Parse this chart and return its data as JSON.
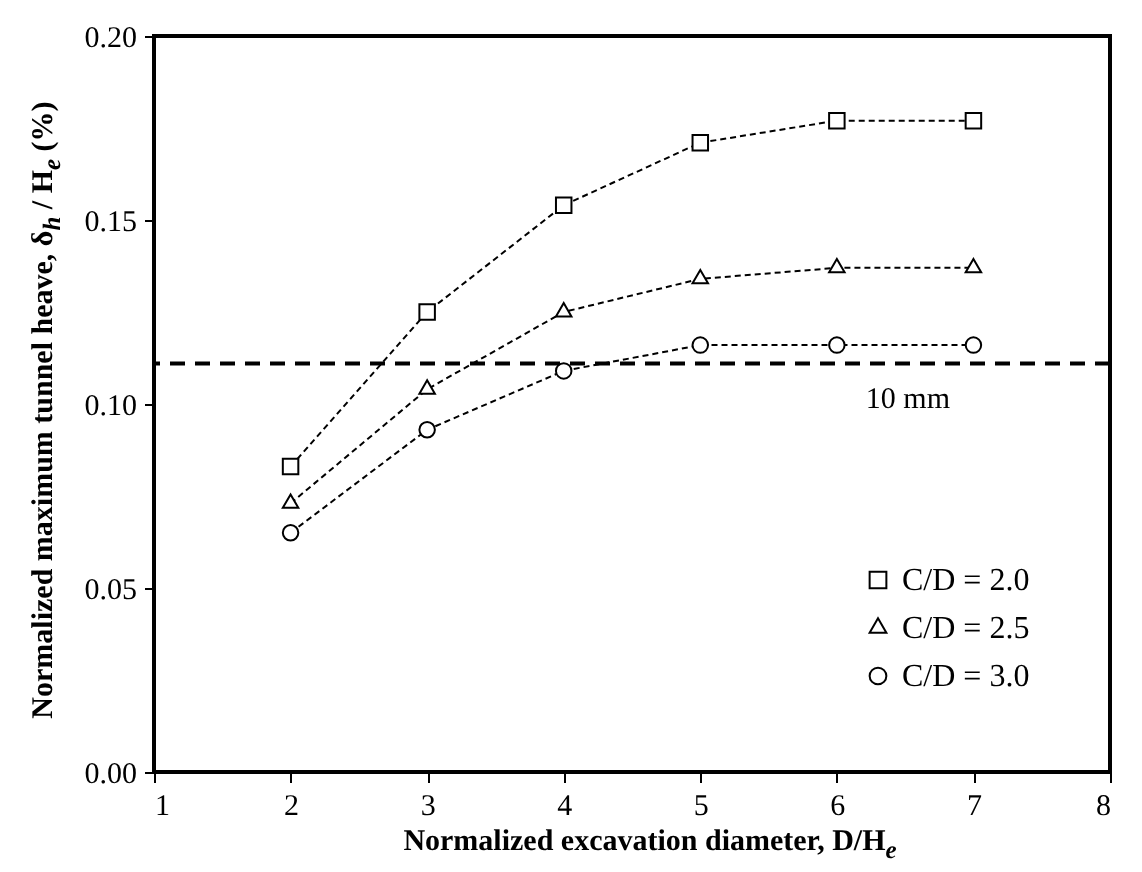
{
  "chart_data": {
    "type": "line",
    "xlabel": "Normalized excavation diameter, $_{}$D/H$_{e}$",
    "ylabel": "Normalized maximum tunnel heave,  δ$_{h}$ / H$_{e}$ (%)",
    "x": [
      2,
      3,
      4,
      5,
      6,
      7
    ],
    "series": [
      {
        "name": "C/D = 2.0",
        "color": "#000000",
        "marker": "square",
        "line_style": "dashed",
        "values": [
          0.083,
          0.125,
          0.154,
          0.171,
          0.177,
          0.177
        ]
      },
      {
        "name": "C/D = 2.5",
        "color": "#000000",
        "marker": "triangle",
        "line_style": "dashed",
        "values": [
          0.073,
          0.104,
          0.125,
          0.134,
          0.137,
          0.137
        ]
      },
      {
        "name": "C/D = 3.0",
        "color": "#000000",
        "marker": "circle",
        "line_style": "dashed",
        "values": [
          0.065,
          0.093,
          0.109,
          0.116,
          0.116,
          0.116
        ]
      }
    ],
    "xlim": [
      1,
      8
    ],
    "xticks": [
      1,
      2,
      3,
      4,
      5,
      6,
      7,
      8
    ],
    "ylim": [
      0,
      0.2
    ],
    "yticks": [
      {
        "value": 0,
        "label": "0.00"
      },
      {
        "value": 0.05,
        "label": "0.05"
      },
      {
        "value": 0.1,
        "label": "0.10"
      },
      {
        "value": 0.15,
        "label": "0.15"
      },
      {
        "value": 0.2,
        "label": "0.20"
      }
    ],
    "ref_lines": [
      {
        "axis": "y",
        "value": 0.111,
        "label": "10 mm",
        "color": "#000000",
        "line_style": "dashed"
      }
    ],
    "grid": false,
    "legend": "bottom right"
  }
}
